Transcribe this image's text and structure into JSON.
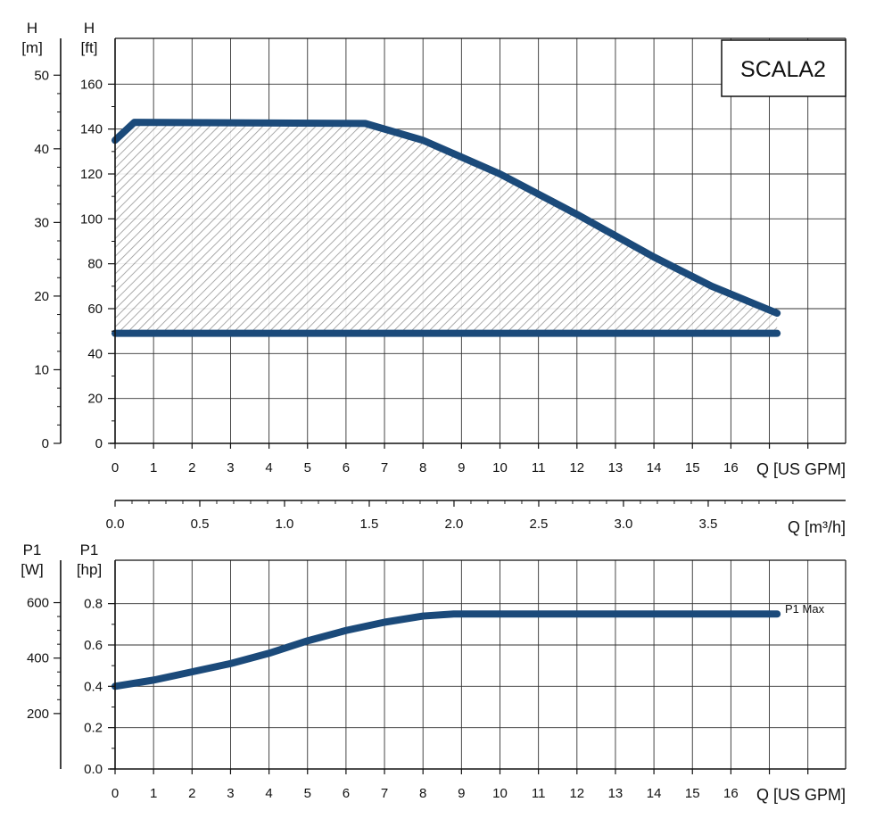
{
  "title": "SCALA2",
  "colors": {
    "curve": "#1b4a7a",
    "grid": "#333333",
    "axis": "#111111"
  },
  "chart_data": [
    {
      "id": "head",
      "type": "line",
      "title": "SCALA2",
      "x_label": "Q [US GPM]",
      "x_range": [
        0,
        19
      ],
      "x_ticks": [
        0,
        1,
        2,
        3,
        4,
        5,
        6,
        7,
        8,
        9,
        10,
        11,
        12,
        13,
        14,
        15,
        16
      ],
      "y_left_label": [
        "H",
        "[m]"
      ],
      "y_left_range": [
        0,
        55
      ],
      "y_left_ticks": [
        0,
        10,
        20,
        30,
        40,
        50
      ],
      "y_right_label": [
        "H",
        "[ft]"
      ],
      "y_right_range": [
        0,
        180.4
      ],
      "y_right_ticks": [
        0,
        20,
        40,
        60,
        80,
        100,
        120,
        140,
        160
      ],
      "grid": true,
      "series": [
        {
          "name": "max curve",
          "x": [
            0,
            0.5,
            6.5,
            8,
            10,
            12,
            14,
            15.5,
            17.2
          ],
          "y_ft": [
            135,
            143,
            142.5,
            135,
            120,
            102,
            83,
            70,
            58
          ]
        },
        {
          "name": "min curve",
          "x": [
            0,
            17.2
          ],
          "y_ft": [
            49,
            49
          ]
        }
      ],
      "hatched_area": "between max curve and min curve"
    },
    {
      "id": "flow-scale",
      "type": "axis",
      "x_label": "Q [m³/h]",
      "tick_labels": [
        "0.0",
        "0.5",
        "1.0",
        "1.5",
        "2.0",
        "2.5",
        "3.0",
        "3.5"
      ],
      "tick_values": [
        0,
        0.5,
        1.0,
        1.5,
        2.0,
        2.5,
        3.0,
        3.5
      ],
      "gpm_per_m3h": 4.4029
    },
    {
      "id": "power",
      "type": "line",
      "x_label": "Q [US GPM]",
      "x_range": [
        0,
        19
      ],
      "x_ticks": [
        0,
        1,
        2,
        3,
        4,
        5,
        6,
        7,
        8,
        9,
        10,
        11,
        12,
        13,
        14,
        15,
        16
      ],
      "y_left_label": [
        "P1",
        "[W]"
      ],
      "y_left_range": [
        0,
        753
      ],
      "y_left_ticks": [
        200,
        400,
        600
      ],
      "y_right_label": [
        "P1",
        "[hp]"
      ],
      "y_right_range": [
        0,
        1.01
      ],
      "y_right_ticks": [
        "0.0",
        "0.2",
        "0.4",
        "0.6",
        "0.8"
      ],
      "grid": true,
      "series": [
        {
          "name": "P1 Max",
          "x": [
            0,
            1,
            2,
            3,
            4,
            5,
            6,
            7,
            8,
            8.8,
            10,
            17.2
          ],
          "y_hp": [
            0.4,
            0.43,
            0.47,
            0.51,
            0.56,
            0.62,
            0.67,
            0.71,
            0.74,
            0.75,
            0.75,
            0.75
          ]
        }
      ],
      "series_label": "P1 Max"
    }
  ]
}
